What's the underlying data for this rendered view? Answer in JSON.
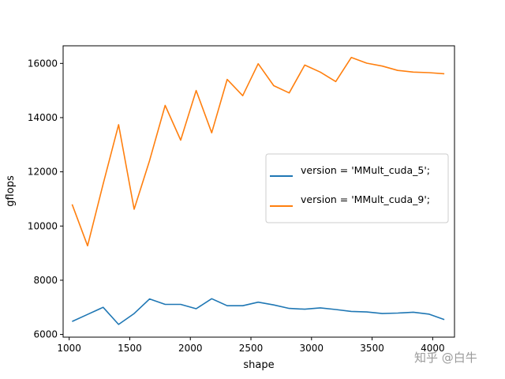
{
  "chart_data": {
    "type": "line",
    "title": "",
    "xlabel": "shape",
    "ylabel": "gflops",
    "xlim": [
      950,
      4180
    ],
    "ylim": [
      5900,
      16650
    ],
    "xticks": [
      1000,
      1500,
      2000,
      2500,
      3000,
      3500,
      4000
    ],
    "yticks": [
      6000,
      8000,
      10000,
      12000,
      14000,
      16000
    ],
    "grid": false,
    "legend_position": "center-right",
    "x": [
      1024,
      1152,
      1280,
      1408,
      1536,
      1664,
      1792,
      1920,
      2048,
      2176,
      2304,
      2432,
      2560,
      2688,
      2816,
      2944,
      3072,
      3200,
      3328,
      3456,
      3584,
      3712,
      3840,
      3968,
      4096
    ],
    "series": [
      {
        "name": "version = 'MMult_cuda_5';",
        "color": "#1f77b4",
        "values": [
          6480,
          6740,
          7000,
          6370,
          6770,
          7310,
          7110,
          7110,
          6950,
          7320,
          7060,
          7060,
          7190,
          7090,
          6960,
          6930,
          6980,
          6920,
          6850,
          6830,
          6770,
          6790,
          6820,
          6750,
          6550
        ]
      },
      {
        "name": "version = 'MMult_cuda_9';",
        "color": "#ff7f0e",
        "values": [
          10800,
          9270,
          11550,
          13740,
          10620,
          12420,
          14450,
          13170,
          15000,
          13440,
          15410,
          14810,
          15990,
          15180,
          14910,
          15940,
          15680,
          15330,
          16220,
          16010,
          15900,
          15740,
          15680,
          15660,
          15620
        ]
      }
    ]
  },
  "watermark": "知乎 @白牛"
}
